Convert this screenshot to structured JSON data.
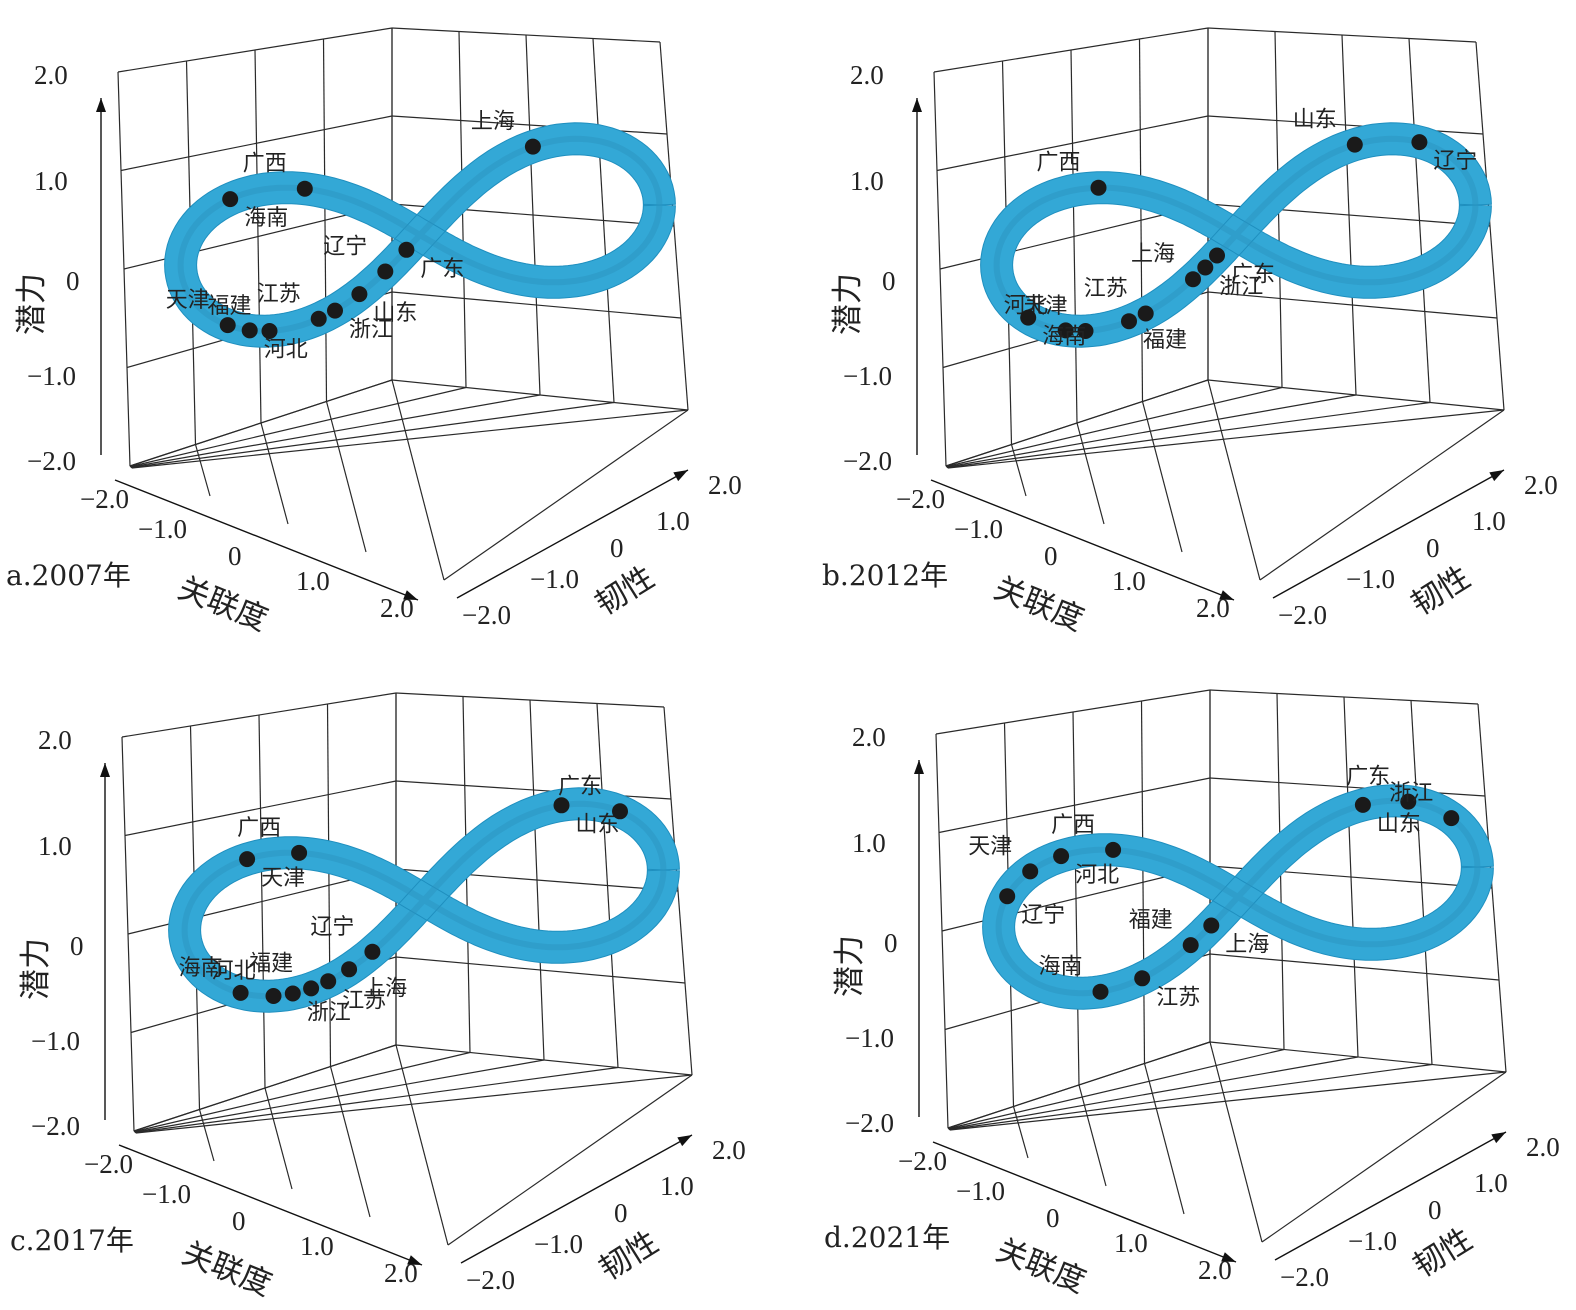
{
  "chart_data": [
    {
      "type": "scatter",
      "panel_label": "a.2007年",
      "xlabel": "关联度",
      "ylabel": "韧性",
      "zlabel": "潜力",
      "xlim": [
        -2.0,
        2.0
      ],
      "ylim": [
        -2.0,
        2.0
      ],
      "zlim": [
        -2.0,
        2.0
      ],
      "x_ticks": [
        "−2.0",
        "−1.0",
        "0",
        "1.0",
        "2.0"
      ],
      "y_ticks": [
        "−2.0",
        "−1.0",
        "0",
        "1.0",
        "2.0"
      ],
      "z_ticks": [
        "−2.0",
        "−1.0",
        "0",
        "1.0",
        "2.0"
      ],
      "band_color": "#33a8d6",
      "points": [
        {
          "label": "辽宁",
          "t": 0.295
        },
        {
          "label": "广东",
          "t": 0.268
        },
        {
          "label": "江苏",
          "t": 0.365
        },
        {
          "label": "山东",
          "t": 0.325
        },
        {
          "label": "福建",
          "t": 0.405
        },
        {
          "label": "浙江",
          "t": 0.35
        },
        {
          "label": "天津",
          "t": 0.437
        },
        {
          "label": "河北",
          "t": 0.42
        },
        {
          "label": "上海",
          "t": 0.125
        },
        {
          "label": "海南",
          "t": 0.565
        },
        {
          "label": "广西",
          "t": 0.623
        }
      ]
    },
    {
      "type": "scatter",
      "panel_label": "b.2012年",
      "xlabel": "关联度",
      "ylabel": "韧性",
      "zlabel": "潜力",
      "xlim": [
        -2.0,
        2.0
      ],
      "ylim": [
        -2.0,
        2.0
      ],
      "zlim": [
        -2.0,
        2.0
      ],
      "x_ticks": [
        "−2.0",
        "−1.0",
        "0",
        "1.0",
        "2.0"
      ],
      "y_ticks": [
        "−2.0",
        "−1.0",
        "0",
        "1.0",
        "2.0"
      ],
      "z_ticks": [
        "−2.0",
        "−1.0",
        "0",
        "1.0",
        "2.0"
      ],
      "band_color": "#33a8d6",
      "points": [
        {
          "label": "上海",
          "t": 0.305
        },
        {
          "label": "广东",
          "t": 0.275
        },
        {
          "label": "江苏",
          "t": 0.355
        },
        {
          "label": "浙江",
          "t": 0.29
        },
        {
          "label": "天津",
          "t": 0.405
        },
        {
          "label": "福建",
          "t": 0.37
        },
        {
          "label": "河北",
          "t": 0.42
        },
        {
          "label": "海南",
          "t": 0.45
        },
        {
          "label": "山东",
          "t": 0.12
        },
        {
          "label": "辽宁",
          "t": 0.07
        },
        {
          "label": "广西",
          "t": 0.605
        }
      ]
    },
    {
      "type": "scatter",
      "panel_label": "c.2017年",
      "xlabel": "关联度",
      "ylabel": "韧性",
      "zlabel": "潜力",
      "xlim": [
        -2.0,
        2.0
      ],
      "ylim": [
        -2.0,
        2.0
      ],
      "zlim": [
        -2.0,
        2.0
      ],
      "x_ticks": [
        "−2.0",
        "−1.0",
        "0",
        "1.0",
        "2.0"
      ],
      "y_ticks": [
        "−2.0",
        "−1.0",
        "0",
        "1.0",
        "2.0"
      ],
      "z_ticks": [
        "−2.0",
        "−1.0",
        "0",
        "1.0",
        "2.0"
      ],
      "band_color": "#33a8d6",
      "points": [
        {
          "label": "辽宁",
          "t": 0.315
        },
        {
          "label": "上海",
          "t": 0.34
        },
        {
          "label": "福建",
          "t": 0.375
        },
        {
          "label": "江苏",
          "t": 0.36
        },
        {
          "label": "河北",
          "t": 0.405
        },
        {
          "label": "浙江",
          "t": 0.39
        },
        {
          "label": "海南",
          "t": 0.43
        },
        {
          "label": "山东",
          "t": 0.105
        },
        {
          "label": "广东",
          "t": 0.06
        },
        {
          "label": "天津",
          "t": 0.575
        },
        {
          "label": "广西",
          "t": 0.615
        }
      ]
    },
    {
      "type": "scatter",
      "panel_label": "d.2021年",
      "xlabel": "关联度",
      "ylabel": "韧性",
      "zlabel": "潜力",
      "xlim": [
        -2.0,
        2.0
      ],
      "ylim": [
        -2.0,
        2.0
      ],
      "zlim": [
        -2.0,
        2.0
      ],
      "x_ticks": [
        "−2.0",
        "−1.0",
        "0",
        "1.0",
        "2.0"
      ],
      "y_ticks": [
        "−2.0",
        "−1.0",
        "0",
        "1.0",
        "2.0"
      ],
      "z_ticks": [
        "−2.0",
        "−1.0",
        "0",
        "1.0",
        "2.0"
      ],
      "band_color": "#33a8d6",
      "points": [
        {
          "label": "福建",
          "t": 0.31
        },
        {
          "label": "上海",
          "t": 0.285
        },
        {
          "label": "海南",
          "t": 0.395
        },
        {
          "label": "江苏",
          "t": 0.36
        },
        {
          "label": "广东",
          "t": 0.08
        },
        {
          "label": "山东",
          "t": 0.115
        },
        {
          "label": "浙江",
          "t": 0.045
        },
        {
          "label": "辽宁",
          "t": 0.525
        },
        {
          "label": "天津",
          "t": 0.55
        },
        {
          "label": "河北",
          "t": 0.575
        },
        {
          "label": "广西",
          "t": 0.615
        }
      ]
    }
  ]
}
